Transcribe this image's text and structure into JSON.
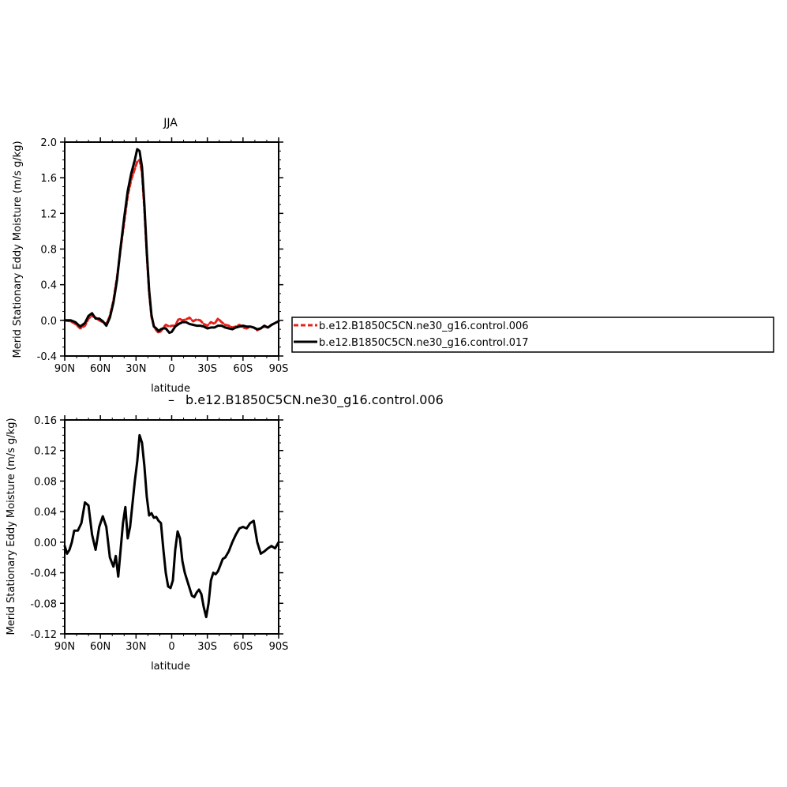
{
  "chart_data": [
    {
      "type": "line",
      "title": "JJA",
      "subtitle": "",
      "xlabel": "latitude",
      "ylabel": "Merid Stationary Eddy Moisture (m/s g/kg)",
      "xlim": [
        90,
        -90
      ],
      "ylim": [
        -0.4,
        2.0
      ],
      "x_ticks": [
        90,
        60,
        30,
        0,
        -30,
        -60,
        -90
      ],
      "x_tick_labels": [
        "90N",
        "60N",
        "30N",
        "0",
        "30S",
        "60S",
        "90S"
      ],
      "y_ticks": [
        -0.4,
        0.0,
        0.4,
        0.8,
        1.2,
        1.6,
        2.0
      ],
      "y_tick_labels": [
        "-0.4",
        "0.0",
        "0.4",
        "0.8",
        "1.2",
        "1.6",
        "2.0"
      ],
      "legend_position": "right",
      "series": [
        {
          "name": "b.e12.B1850C5CN.ne30_g16.control.006",
          "color": "#e8201a",
          "dash": "dashed",
          "x": [
            90,
            85,
            81,
            77,
            73,
            70,
            67,
            64,
            61,
            58,
            55,
            52,
            49,
            46,
            43,
            40,
            37,
            34,
            31,
            29,
            27,
            25,
            23,
            21,
            19,
            17,
            15,
            13,
            11,
            9,
            7,
            5,
            2,
            0,
            -3,
            -6,
            -9,
            -12,
            -15,
            -18,
            -21,
            -24,
            -27,
            -30,
            -33,
            -36,
            -39,
            -42,
            -45,
            -48,
            -51,
            -54,
            -57,
            -60,
            -63,
            -66,
            -69,
            -72,
            -75,
            -78,
            -81,
            -84,
            -87,
            -90
          ],
          "values": [
            0.0,
            -0.01,
            -0.04,
            -0.09,
            -0.06,
            0.02,
            0.05,
            0.03,
            0.0,
            -0.02,
            -0.04,
            0.05,
            0.22,
            0.48,
            0.8,
            1.1,
            1.4,
            1.58,
            1.7,
            1.78,
            1.8,
            1.66,
            1.25,
            0.75,
            0.32,
            0.04,
            -0.06,
            -0.11,
            -0.14,
            -0.12,
            -0.08,
            -0.05,
            -0.07,
            -0.06,
            -0.06,
            0.02,
            0.0,
            0.01,
            0.03,
            -0.01,
            0.01,
            0.0,
            -0.04,
            -0.06,
            -0.02,
            -0.04,
            0.02,
            -0.02,
            -0.05,
            -0.06,
            -0.08,
            -0.07,
            -0.05,
            -0.08,
            -0.09,
            -0.07,
            -0.08,
            -0.11,
            -0.09,
            -0.07,
            -0.08,
            -0.05,
            -0.03,
            -0.01
          ]
        },
        {
          "name": "b.e12.B1850C5CN.ne30_g16.control.017",
          "color": "#000000",
          "dash": "solid",
          "x": [
            90,
            85,
            81,
            77,
            73,
            70,
            67,
            64,
            61,
            58,
            55,
            52,
            49,
            46,
            43,
            40,
            37,
            34,
            31,
            29,
            27,
            25,
            23,
            21,
            19,
            17,
            15,
            13,
            11,
            9,
            7,
            5,
            2,
            0,
            -3,
            -6,
            -9,
            -12,
            -15,
            -18,
            -21,
            -24,
            -27,
            -30,
            -33,
            -36,
            -39,
            -42,
            -45,
            -48,
            -51,
            -54,
            -57,
            -60,
            -63,
            -66,
            -69,
            -72,
            -75,
            -78,
            -81,
            -84,
            -87,
            -90
          ],
          "values": [
            0.0,
            0.0,
            -0.02,
            -0.07,
            -0.03,
            0.05,
            0.08,
            0.02,
            0.02,
            -0.01,
            -0.06,
            0.03,
            0.2,
            0.45,
            0.82,
            1.15,
            1.45,
            1.65,
            1.8,
            1.92,
            1.9,
            1.72,
            1.3,
            0.78,
            0.34,
            0.06,
            -0.07,
            -0.09,
            -0.12,
            -0.1,
            -0.09,
            -0.09,
            -0.14,
            -0.13,
            -0.07,
            -0.04,
            -0.02,
            -0.02,
            -0.04,
            -0.05,
            -0.06,
            -0.06,
            -0.07,
            -0.09,
            -0.08,
            -0.08,
            -0.06,
            -0.06,
            -0.08,
            -0.09,
            -0.1,
            -0.08,
            -0.07,
            -0.06,
            -0.07,
            -0.07,
            -0.08,
            -0.1,
            -0.09,
            -0.06,
            -0.08,
            -0.05,
            -0.03,
            -0.01
          ]
        }
      ]
    },
    {
      "type": "line",
      "title": "b.e12.B1850C5CN.ne30_g16.control.006",
      "title_prefix": "–",
      "xlabel": "latitude",
      "ylabel": "Merid Stationary Eddy Moisture (m/s g/kg)",
      "xlim": [
        90,
        -90
      ],
      "ylim": [
        -0.12,
        0.16
      ],
      "x_ticks": [
        90,
        60,
        30,
        0,
        -30,
        -60,
        -90
      ],
      "x_tick_labels": [
        "90N",
        "60N",
        "30N",
        "0",
        "30S",
        "60S",
        "90S"
      ],
      "y_ticks": [
        -0.12,
        -0.08,
        -0.04,
        0.0,
        0.04,
        0.08,
        0.12,
        0.16
      ],
      "y_tick_labels": [
        "-0.12",
        "-0.08",
        "-0.04",
        "0.00",
        "0.04",
        "0.08",
        "0.12",
        "0.16"
      ],
      "series": [
        {
          "name": "",
          "color": "#000000",
          "dash": "solid",
          "x": [
            90,
            88,
            86,
            84,
            82,
            79,
            76,
            73,
            70,
            67,
            64,
            61,
            58,
            55,
            52,
            49,
            47,
            45,
            43,
            41,
            39,
            37,
            35,
            33,
            31,
            29,
            27,
            25,
            23,
            21,
            19,
            17,
            15,
            13,
            11,
            9,
            7,
            5,
            3,
            1,
            -1,
            -3,
            -5,
            -7,
            -9,
            -11,
            -13,
            -15,
            -17,
            -19,
            -21,
            -23,
            -25,
            -27,
            -29,
            -31,
            -33,
            -35,
            -37,
            -39,
            -41,
            -43,
            -45,
            -48,
            -51,
            -54,
            -57,
            -60,
            -63,
            -66,
            -69,
            -72,
            -75,
            -78,
            -81,
            -84,
            -87,
            -90
          ],
          "values": [
            -0.005,
            -0.015,
            -0.01,
            0.0,
            0.015,
            0.015,
            0.025,
            0.052,
            0.048,
            0.01,
            -0.01,
            0.02,
            0.034,
            0.02,
            -0.02,
            -0.032,
            -0.018,
            -0.045,
            -0.01,
            0.025,
            0.046,
            0.005,
            0.02,
            0.05,
            0.08,
            0.105,
            0.14,
            0.13,
            0.1,
            0.06,
            0.035,
            0.038,
            0.032,
            0.033,
            0.028,
            0.025,
            -0.01,
            -0.04,
            -0.058,
            -0.06,
            -0.05,
            -0.01,
            0.014,
            0.005,
            -0.025,
            -0.04,
            -0.05,
            -0.06,
            -0.07,
            -0.072,
            -0.066,
            -0.062,
            -0.068,
            -0.085,
            -0.098,
            -0.08,
            -0.05,
            -0.04,
            -0.042,
            -0.038,
            -0.03,
            -0.022,
            -0.02,
            -0.012,
            0.0,
            0.01,
            0.018,
            0.02,
            0.018,
            0.025,
            0.028,
            0.0,
            -0.015,
            -0.012,
            -0.008,
            -0.005,
            -0.008,
            0.0
          ]
        }
      ]
    }
  ]
}
